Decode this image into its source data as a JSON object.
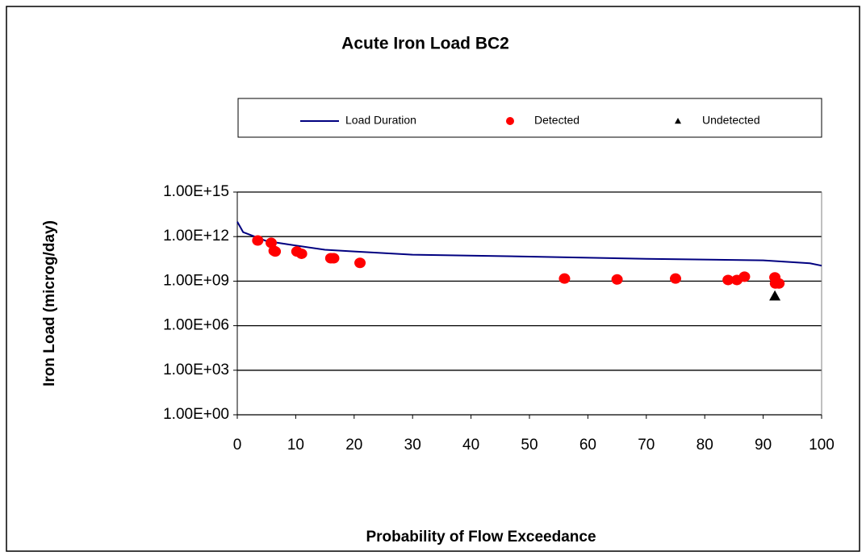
{
  "chart_data": {
    "type": "scatter",
    "title": "Acute Iron Load BC2",
    "xlabel": "Probability of Flow Exceedance",
    "ylabel": "Iron Load (microg/day)",
    "xlim": [
      0,
      100
    ],
    "xticks": [
      0,
      10,
      20,
      30,
      40,
      50,
      60,
      70,
      80,
      90,
      100
    ],
    "ylim": [
      1,
      1000000000000000.0
    ],
    "log_y": true,
    "grid": true,
    "yticks": [
      {
        "value": 1,
        "label": "1.00E+00"
      },
      {
        "value": 1000,
        "label": "1.00E+03"
      },
      {
        "value": 1000000,
        "label": "1.00E+06"
      },
      {
        "value": 1000000000,
        "label": "1.00E+09"
      },
      {
        "value": 1000000000000,
        "label": "1.00E+12"
      },
      {
        "value": 1000000000000000,
        "label": "1.00E+15"
      }
    ],
    "series": [
      {
        "name": "Load Duration",
        "color": "#000080",
        "mark": "line",
        "x": [
          0,
          1,
          3,
          5,
          10,
          15,
          20,
          30,
          50,
          70,
          90,
          98,
          100
        ],
        "values": [
          10000000000000.0,
          2000000000000.0,
          1000000000000.0,
          500000000000.0,
          250000000000.0,
          130000000000.0,
          100000000000.0,
          60000000000.0,
          45000000000.0,
          32000000000.0,
          25000000000.0,
          16000000000.0,
          11000000000.0
        ]
      },
      {
        "name": "Detected",
        "color": "#ff0000",
        "mark": "circle",
        "x": [
          3.5,
          5.8,
          6.3,
          6.5,
          10.2,
          11,
          16,
          16.5,
          21,
          56,
          65,
          75,
          84,
          85.5,
          86.8,
          92,
          92.1,
          92.3,
          92.7
        ],
        "values": [
          550000000000.0,
          380000000000.0,
          110000000000.0,
          100000000000.0,
          100000000000.0,
          70000000000.0,
          35000000000.0,
          35000000000.0,
          17000000000.0,
          1500000000.0,
          1300000000.0,
          1500000000.0,
          1200000000.0,
          1200000000.0,
          2000000000.0,
          1800000000.0,
          700000000.0,
          800000000.0,
          700000000.0
        ]
      },
      {
        "name": "Undetected",
        "color": "#000000",
        "mark": "triangle",
        "x": [
          92
        ],
        "values": [
          100000000.0
        ]
      }
    ]
  }
}
